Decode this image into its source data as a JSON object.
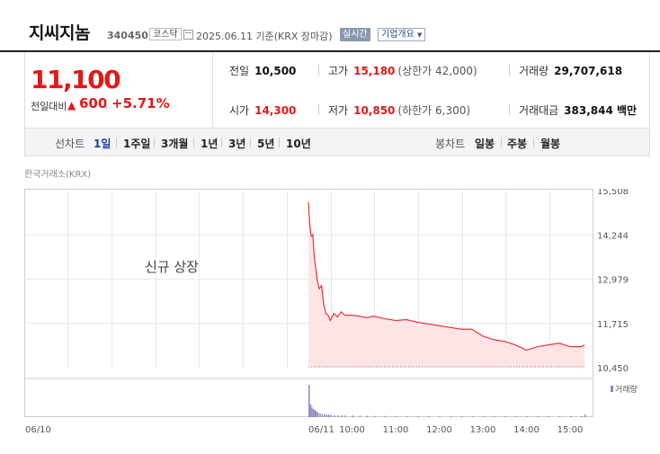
{
  "header": {
    "name": "지씨지놈",
    "code": "340450",
    "market": "코스닥",
    "date_text": "2025.06.11  기준(KRX 장마감)",
    "realtime_label": "실시간",
    "company_label": "기업개요"
  },
  "price": {
    "current": "11,100",
    "change_label": "전일대비",
    "change_value": "600",
    "change_pct": "+5.71%",
    "accent_color": "#e01a1a"
  },
  "stats": {
    "prev_close_label": "전일",
    "prev_close": "10,500",
    "high_label": "고가",
    "high": "15,180",
    "high_sub": "(상한가 42,000)",
    "volume_label": "거래량",
    "volume": "29,707,618",
    "open_label": "시가",
    "open": "14,300",
    "low_label": "저가",
    "low": "10,850",
    "low_sub": "(하한가 6,300)",
    "amount_label": "거래대금",
    "amount": "383,844 백만"
  },
  "toolbar": {
    "line_chart_label": "선차트",
    "periods": [
      "1일",
      "1주일",
      "3개월",
      "1년",
      "3년",
      "5년",
      "10년"
    ],
    "active_period": "1일",
    "candle_label": "봉차트",
    "candle_periods": [
      "일봉",
      "주봉",
      "월봉"
    ]
  },
  "exchange_label": "한국거래소(KRX)",
  "chart_data": {
    "type": "area",
    "note_text": "신규 상장",
    "y_ticks": [
      "15,508",
      "14,244",
      "12,979",
      "11,715",
      "10,450"
    ],
    "ylim": [
      10450,
      15508
    ],
    "x_ticks": [
      "06/10",
      "06/11",
      "10:00",
      "11:00",
      "12:00",
      "13:00",
      "14:00",
      "15:00"
    ],
    "volume_label": "거래량",
    "series": [
      {
        "name": "price",
        "x": [
          "09:00",
          "09:02",
          "09:04",
          "09:06",
          "09:08",
          "09:10",
          "09:12",
          "09:15",
          "09:18",
          "09:21",
          "09:24",
          "09:27",
          "09:30",
          "09:35",
          "09:40",
          "09:45",
          "09:50",
          "10:00",
          "10:10",
          "10:20",
          "10:30",
          "10:45",
          "11:00",
          "11:15",
          "11:30",
          "11:45",
          "12:00",
          "12:15",
          "12:30",
          "12:45",
          "13:00",
          "13:15",
          "13:30",
          "13:45",
          "14:00",
          "14:15",
          "14:30",
          "14:45",
          "15:00",
          "15:15",
          "15:20"
        ],
        "values": [
          15180,
          14500,
          14200,
          14250,
          13600,
          13300,
          12950,
          12700,
          12800,
          12250,
          12000,
          11950,
          11800,
          12000,
          11900,
          12050,
          11950,
          11950,
          11920,
          11880,
          11920,
          11850,
          11800,
          11820,
          11750,
          11700,
          11650,
          11600,
          11550,
          11550,
          11350,
          11250,
          11200,
          11100,
          10950,
          11050,
          11100,
          11150,
          11050,
          11050,
          11100
        ]
      }
    ],
    "volume": [
      100,
      40,
      30,
      25,
      22,
      18,
      15,
      12,
      10,
      9,
      8,
      8,
      7,
      6,
      6,
      5,
      5,
      5,
      4,
      4,
      4,
      4,
      3,
      3,
      3,
      3,
      3,
      3,
      3,
      3,
      3,
      3,
      3,
      3,
      3,
      3,
      3,
      3,
      3,
      3,
      8
    ],
    "grid": true,
    "colors": {
      "line": "#e8262b",
      "fill": "#fde4e5",
      "volume": "#9088c0"
    }
  }
}
